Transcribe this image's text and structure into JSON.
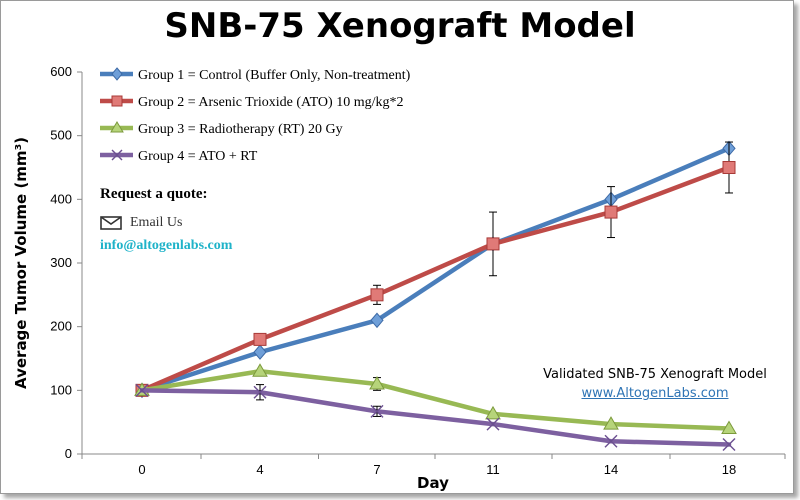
{
  "title": "SNB-75 Xenograft Model",
  "chart_data": {
    "type": "line",
    "title": "SNB-75 Xenograft Model",
    "xlabel": "Day",
    "ylabel": "Average Tumor Volume (mm³)",
    "categories": [
      "0",
      "4",
      "7",
      "11",
      "14",
      "18"
    ],
    "ylim": [
      0,
      600
    ],
    "yticks": [
      0,
      100,
      200,
      300,
      400,
      500,
      600
    ],
    "series": [
      {
        "name": "Group 1 = Control (Buffer Only, Non-treatment)",
        "color": "#4a7ebb",
        "marker": "diamond",
        "values": [
          100,
          160,
          210,
          330,
          400,
          480
        ]
      },
      {
        "name": "Group 2 = Arsenic Trioxide (ATO) 10 mg/kg*2",
        "color": "#be4b48",
        "marker": "square",
        "values": [
          100,
          180,
          250,
          330,
          380,
          450
        ],
        "errors": [
          0,
          0,
          15,
          50,
          40,
          40
        ]
      },
      {
        "name": "Group 3 = Radiotherapy (RT) 20 Gy",
        "color": "#98b954",
        "marker": "triangle",
        "values": [
          100,
          130,
          110,
          63,
          47,
          40
        ],
        "errors": [
          0,
          0,
          10,
          0,
          0,
          0
        ]
      },
      {
        "name": "Group 4 =  ATO + RT",
        "color": "#7d60a0",
        "marker": "x",
        "values": [
          100,
          97,
          67,
          47,
          20,
          15
        ],
        "errors": [
          0,
          12,
          8,
          0,
          0,
          0
        ]
      }
    ]
  },
  "contact": {
    "request_quote": "Request a quote:",
    "email_label": "Email Us",
    "email_address": "info@altogenlabs.com",
    "mail_icon": "envelope-icon"
  },
  "watermark": {
    "line1": "Validated SNB-75 Xenograft Model",
    "link": "www.AltogenLabs.com"
  }
}
